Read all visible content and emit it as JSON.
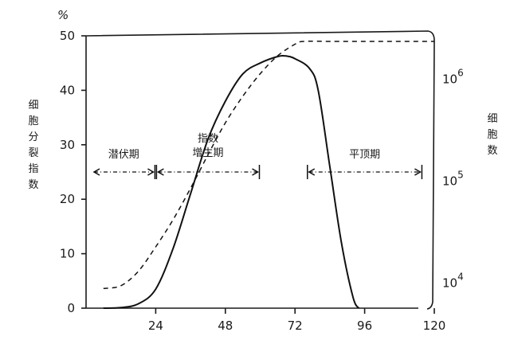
{
  "chart_data": {
    "type": "line",
    "x": [
      0,
      6,
      12,
      18,
      24,
      30,
      36,
      42,
      48,
      54,
      60,
      66,
      69,
      72,
      78,
      84,
      90,
      96
    ],
    "series": [
      {
        "style": "solid",
        "axis": "left",
        "points": [
          [
            6,
            0
          ],
          [
            12,
            0.1
          ],
          [
            18,
            0.8
          ],
          [
            24,
            3.5
          ],
          [
            30,
            11
          ],
          [
            36,
            21
          ],
          [
            42,
            31
          ],
          [
            48,
            38
          ],
          [
            54,
            43
          ],
          [
            60,
            45
          ],
          [
            66,
            46.2
          ],
          [
            69,
            46.3
          ],
          [
            72,
            45.8
          ],
          [
            77,
            44
          ],
          [
            80,
            40
          ],
          [
            84,
            26
          ],
          [
            88,
            12
          ],
          [
            92,
            2
          ],
          [
            94,
            0
          ]
        ]
      },
      {
        "style": "dashed",
        "axis": "right",
        "points": [
          [
            6,
            7800
          ],
          [
            12,
            8300
          ],
          [
            18,
            11500
          ],
          [
            24,
            20000
          ],
          [
            30,
            37000
          ],
          [
            36,
            75000
          ],
          [
            42,
            160000
          ],
          [
            48,
            330000
          ],
          [
            54,
            600000
          ],
          [
            60,
            1000000
          ],
          [
            66,
            1500000
          ],
          [
            72,
            1950000
          ],
          [
            75,
            2080000
          ],
          [
            84,
            2080000
          ],
          [
            96,
            2080000
          ],
          [
            108,
            2080000
          ],
          [
            120,
            2080000
          ]
        ]
      }
    ],
    "x_ticks": [
      "24",
      "48",
      "72",
      "96",
      "120"
    ],
    "x_tick_values": [
      24,
      48,
      72,
      96,
      120
    ],
    "xlim": [
      0,
      120
    ],
    "y_left": {
      "ticks": [
        "0",
        "10",
        "20",
        "30",
        "40",
        "50"
      ],
      "tick_values": [
        0,
        10,
        20,
        30,
        40,
        50
      ],
      "ylim": [
        0,
        50
      ],
      "unit": "%",
      "label": "细胞分裂指数",
      "label_lines": [
        "细",
        "胞分裂",
        "指",
        "数"
      ]
    },
    "y_right": {
      "scale": "log",
      "ylim": [
        5000,
        2400000
      ],
      "ticks": [
        {
          "base": "10",
          "exp": "6",
          "value": 1000000
        },
        {
          "base": "10",
          "exp": "5",
          "value": 100000
        },
        {
          "base": "10",
          "exp": "4",
          "value": 10000
        }
      ],
      "label": "细胞数",
      "label_lines": [
        "细",
        "胞",
        "数"
      ]
    },
    "phases": [
      {
        "label_lines": [
          "潜伏期"
        ],
        "x_start": 0,
        "x_end": 24,
        "y": 25
      },
      {
        "label_lines": [
          "指数",
          "增生期"
        ],
        "x_start": 24,
        "x_end": 60,
        "y": 25
      },
      {
        "label_lines": [
          "平顶期"
        ],
        "x_start": 76,
        "x_end": 116,
        "y": 25
      }
    ],
    "grid": false,
    "legend": "none"
  }
}
